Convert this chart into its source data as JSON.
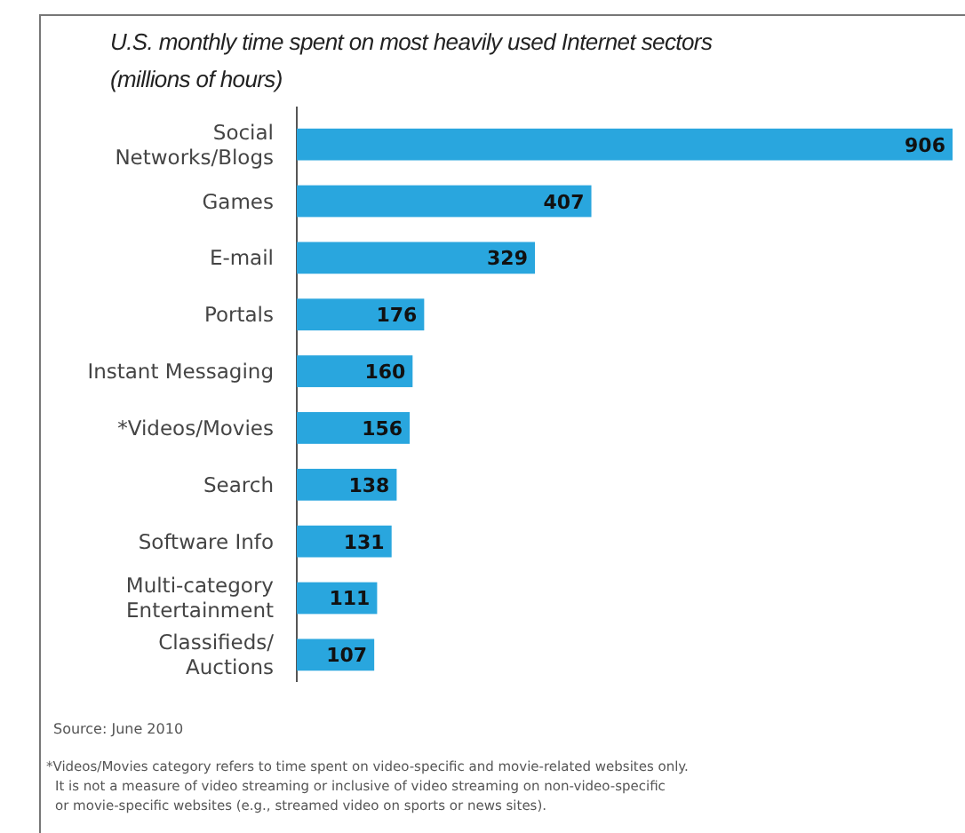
{
  "chart_data": {
    "type": "bar",
    "orientation": "horizontal",
    "title": "U.S. monthly time spent on most heavily used Internet sectors\n(millions of hours)",
    "categories": [
      "Social\nNetworks/Blogs",
      "Games",
      "E-mail",
      "Portals",
      "Instant Messaging",
      "*Videos/Movies",
      "Search",
      "Software Info",
      "Multi-category\nEntertainment",
      "Classifieds/\nAuctions"
    ],
    "values": [
      906,
      407,
      329,
      176,
      160,
      156,
      138,
      131,
      111,
      107
    ],
    "color": "#29a6de",
    "data_labels": true,
    "annotations": [
      "Source: June 2010",
      "*Videos/Movies category refers to time spent on video-specific and movie-related websites only.\nIt is not a measure of video streaming or inclusive of video streaming on non-video-specific\nor movie-specific websites (e.g., streamed video on sports or news sites)."
    ]
  }
}
